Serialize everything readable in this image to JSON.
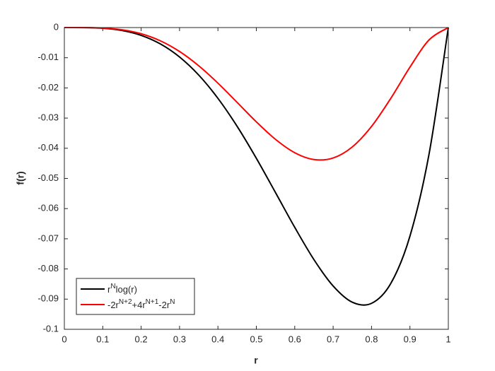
{
  "chart_data": {
    "type": "line",
    "xlabel": "r",
    "ylabel": "f(r)",
    "x": [
      0,
      0.05,
      0.1,
      0.15,
      0.2,
      0.25,
      0.3,
      0.35,
      0.4,
      0.45,
      0.5,
      0.55,
      0.6,
      0.65,
      0.7,
      0.75,
      0.8,
      0.85,
      0.9,
      0.95,
      1
    ],
    "series": [
      {
        "name": "r^{N}log(r)",
        "color": "#000000",
        "values": [
          0,
          -1.87e-05,
          -0.00023,
          -0.00096,
          -0.00258,
          -0.00542,
          -0.00975,
          -0.01575,
          -0.02346,
          -0.03274,
          -0.04332,
          -0.05471,
          -0.0662,
          -0.0769,
          -0.08564,
          -0.09102,
          -0.0914,
          -0.08484,
          -0.06913,
          -0.04178,
          0
        ]
      },
      {
        "name": "-2r^{N+2}+4r^{N+1}-2r^{N}",
        "color": "#ff0000",
        "values": [
          0,
          -1.13e-05,
          -0.000162,
          -0.000732,
          -0.002048,
          -0.004395,
          -0.007938,
          -0.01268,
          -0.01843,
          -0.02481,
          -0.03125,
          -0.03706,
          -0.04147,
          -0.04373,
          -0.04322,
          -0.03955,
          -0.03277,
          -0.02349,
          -0.01312,
          -0.00407,
          0
        ]
      }
    ],
    "xlim": [
      0,
      1
    ],
    "xticks": [
      0,
      0.1,
      0.2,
      0.3,
      0.4,
      0.5,
      0.6,
      0.7,
      0.8,
      0.9,
      1
    ],
    "ylim": [
      -0.1,
      0
    ],
    "yticks": [
      0,
      -0.01,
      -0.02,
      -0.03,
      -0.04,
      -0.05,
      -0.06,
      -0.07,
      -0.08,
      -0.09,
      -0.1
    ],
    "grid": false,
    "legend": "southwest"
  }
}
